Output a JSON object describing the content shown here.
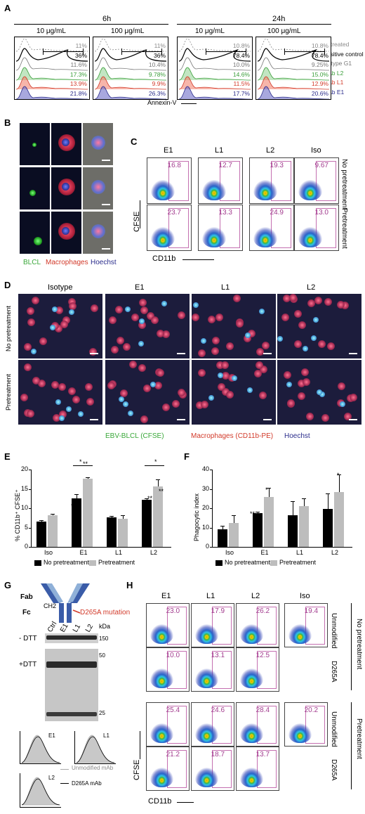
{
  "panels": {
    "a": "A",
    "b": "B",
    "c": "C",
    "d": "D",
    "e": "E",
    "f": "F",
    "g": "G",
    "h": "H"
  },
  "panel_a": {
    "time_labels": [
      "6h",
      "24h"
    ],
    "concentrations": [
      "10 μg/mL",
      "100 μg/mL",
      "10 μg/mL",
      "100 μg/mL"
    ],
    "legend": [
      "Untreated",
      "Positive control",
      "Isotype G1",
      "mAb L2",
      "mAb L1",
      "mAb E1"
    ],
    "legend_colors": [
      "#8a8a8a",
      "#000000",
      "#777777",
      "#3a9e3a",
      "#d23a2a",
      "#2b2d8c"
    ],
    "xlabel": "Annexin-V",
    "values": [
      [
        "11%",
        "36%",
        "11.6%",
        "17.3%",
        "13.9%",
        "21.8%"
      ],
      [
        "11%",
        "36%",
        "10.4%",
        "9.78%",
        "9.9%",
        "26.3%"
      ],
      [
        "10.8%",
        "78.4%",
        "10.0%",
        "14.6%",
        "11.5%",
        "17.7%"
      ],
      [
        "10.8%",
        "78.4%",
        "9.25%",
        "15.0%",
        "12.9%",
        "20.6%"
      ]
    ]
  },
  "panel_b": {
    "legend": [
      "BLCL",
      "Macrophages",
      "Hoechst"
    ],
    "legend_colors": [
      "#3aa83a",
      "#d23a2a",
      "#2b2d8c"
    ]
  },
  "panel_c": {
    "columns": [
      "E1",
      "L1",
      "L2",
      "Iso"
    ],
    "rows": [
      "No pretreatment",
      "Pretreatment"
    ],
    "values": [
      [
        "16.8",
        "12.7",
        "19.3",
        "9.67"
      ],
      [
        "23.7",
        "13.3",
        "24.9",
        "13.0"
      ]
    ],
    "ylabel": "CFSE",
    "xlabel": "CD11b"
  },
  "panel_d": {
    "columns": [
      "Isotype",
      "E1",
      "L1",
      "L2"
    ],
    "rows": [
      "No pretreatment",
      "Pretreatment"
    ],
    "legend": [
      "EBV-BLCL (CFSE)",
      "Macrophages (CD11b-PE)",
      "Hoechst"
    ],
    "legend_colors": [
      "#3aa83a",
      "#d23a2a",
      "#2b2d8c"
    ]
  },
  "panel_e": {
    "chart_data": {
      "type": "bar",
      "categories": [
        "Iso",
        "E1",
        "L1",
        "L2"
      ],
      "series": [
        {
          "name": "No pretreatment",
          "values": [
            6.5,
            12.6,
            7.7,
            12.1
          ],
          "errors": [
            0.5,
            1.0,
            0.3,
            0.5
          ],
          "color": "#000000"
        },
        {
          "name": "Pretreatment",
          "values": [
            8.2,
            17.6,
            7.2,
            15.7
          ],
          "errors": [
            0.4,
            0.4,
            1.0,
            1.8
          ],
          "color": "#bdbdbd"
        }
      ],
      "ylim": [
        0,
        20
      ],
      "yticks": [
        "0",
        "5",
        "10",
        "15",
        "20"
      ],
      "ylabel": "% CD11b⁺ CFSE⁺",
      "annotations": [
        "**",
        "**",
        "*",
        "**",
        "**",
        "*"
      ]
    }
  },
  "panel_f": {
    "chart_data": {
      "type": "bar",
      "categories": [
        "Iso",
        "E1",
        "L1",
        "L2"
      ],
      "series": [
        {
          "name": "No pretreatment",
          "values": [
            9,
            17.5,
            16.5,
            19.5
          ],
          "errors": [
            2,
            0.7,
            7,
            8
          ],
          "color": "#000000"
        },
        {
          "name": "Pretreatment",
          "values": [
            12.5,
            26,
            21,
            28.5
          ],
          "errors": [
            4,
            4.5,
            4,
            9
          ],
          "color": "#bdbdbd"
        }
      ],
      "ylim": [
        0,
        40
      ],
      "yticks": [
        "0",
        "10",
        "20",
        "30",
        "40"
      ],
      "ylabel": "Phagocytic index",
      "annotations": [
        "**",
        "*",
        "*"
      ]
    }
  },
  "panel_g": {
    "fab": "Fab",
    "fc": "Fc",
    "ch2": "CH2",
    "mutation": "D265A mutation",
    "lanes": [
      "Ctrl",
      "E1",
      "L1",
      "L2"
    ],
    "kda": "kDa",
    "markers": [
      "150",
      "50",
      "25"
    ],
    "conditions": [
      "- DTT",
      "+DTT"
    ],
    "hist_labels": [
      "E1",
      "L1",
      "L2"
    ],
    "legend": [
      "Unmodified mAb",
      "D265A mAb"
    ]
  },
  "panel_h": {
    "columns": [
      "E1",
      "L1",
      "L2",
      "Iso"
    ],
    "groups": [
      "No pretreatment",
      "Pretreatment"
    ],
    "subrows": [
      "Unmodified",
      "D265A"
    ],
    "values": [
      [
        "23.0",
        "17.9",
        "26.2",
        "19.4"
      ],
      [
        "10.0",
        "13.1",
        "12.5"
      ],
      [
        "25.4",
        "24.6",
        "28.4",
        "20.2"
      ],
      [
        "21.2",
        "18.7",
        "13.7"
      ]
    ],
    "ylabel": "CFSE",
    "xlabel": "CD11b"
  }
}
